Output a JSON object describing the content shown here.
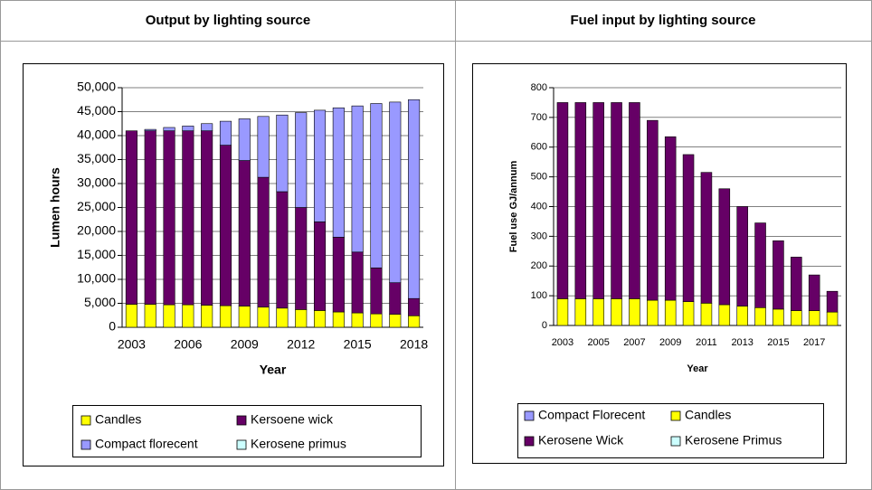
{
  "chart_data": [
    {
      "type": "bar",
      "stacked": true,
      "title": "Output by lighting source",
      "x_label": "Year",
      "y_label": "Lumen hours",
      "categories": [
        "2003",
        null,
        null,
        "2006",
        null,
        null,
        "2009",
        null,
        null,
        "2012",
        null,
        null,
        "2015",
        null,
        null,
        "2018"
      ],
      "series": [
        {
          "name": "Candles",
          "color": "#ffff00",
          "values": [
            4800,
            4800,
            4700,
            4700,
            4600,
            4500,
            4400,
            4200,
            4000,
            3700,
            3500,
            3200,
            3000,
            2800,
            2700,
            2400
          ]
        },
        {
          "name": "Kersoene wick",
          "color": "#660066",
          "values": [
            36200,
            36200,
            36300,
            36300,
            36400,
            33500,
            30400,
            27100,
            24300,
            21300,
            18500,
            15600,
            12700,
            9600,
            6600,
            3600
          ]
        },
        {
          "name": "Compact florecent",
          "color": "#9999ff",
          "values": [
            0,
            300,
            700,
            1000,
            1500,
            5000,
            8700,
            12700,
            16000,
            19800,
            23300,
            27000,
            30500,
            34300,
            37700,
            41500
          ]
        },
        {
          "name": "Kerosene primus",
          "color": "#ccffff",
          "values": [
            0,
            0,
            0,
            0,
            0,
            0,
            0,
            0,
            0,
            0,
            0,
            0,
            0,
            0,
            0,
            0
          ]
        }
      ],
      "ylim": [
        0,
        50000
      ],
      "yticks": [
        0,
        {
          "value": 5000,
          "label": "5,000"
        },
        {
          "value": 10000,
          "label": "10,000"
        },
        {
          "value": 15000,
          "label": "15,000"
        },
        {
          "value": 20000,
          "label": "20,000"
        },
        {
          "value": 25000,
          "label": "25,000"
        },
        {
          "value": 30000,
          "label": "30,000"
        },
        {
          "value": 35000,
          "label": "35,000"
        },
        {
          "value": 40000,
          "label": "40,000"
        },
        {
          "value": 45000,
          "label": "45,000"
        },
        {
          "value": 50000,
          "label": "50,000"
        }
      ],
      "grid": true
    },
    {
      "type": "bar",
      "stacked": true,
      "title": "Fuel input by lighting source",
      "x_label": "Year",
      "y_label": "Fuel use GJ/annum",
      "categories": [
        "2003",
        null,
        "2005",
        null,
        "2007",
        null,
        "2009",
        null,
        "2011",
        null,
        "2013",
        null,
        "2015",
        null,
        "2017",
        null
      ],
      "series": [
        {
          "name": "Compact Florecent",
          "color": "#9999ff",
          "values": [
            0,
            0,
            0,
            0,
            0,
            0,
            0,
            0,
            0,
            0,
            0,
            0,
            0,
            0,
            0,
            0
          ]
        },
        {
          "name": "Candles",
          "color": "#ffff00",
          "values": [
            90,
            90,
            90,
            90,
            90,
            85,
            85,
            80,
            75,
            70,
            65,
            60,
            55,
            50,
            50,
            45
          ]
        },
        {
          "name": "Kerosene Wick",
          "color": "#660066",
          "values": [
            660,
            660,
            660,
            660,
            660,
            605,
            550,
            495,
            440,
            390,
            335,
            285,
            230,
            180,
            120,
            70
          ]
        },
        {
          "name": "Kerosene Primus",
          "color": "#ccffff",
          "values": [
            0,
            0,
            0,
            0,
            0,
            0,
            0,
            0,
            0,
            0,
            0,
            0,
            0,
            0,
            0,
            0
          ]
        }
      ],
      "ylim": [
        0,
        800
      ],
      "yticks": [
        0,
        100,
        200,
        300,
        400,
        500,
        600,
        700,
        800
      ],
      "grid": true
    }
  ]
}
